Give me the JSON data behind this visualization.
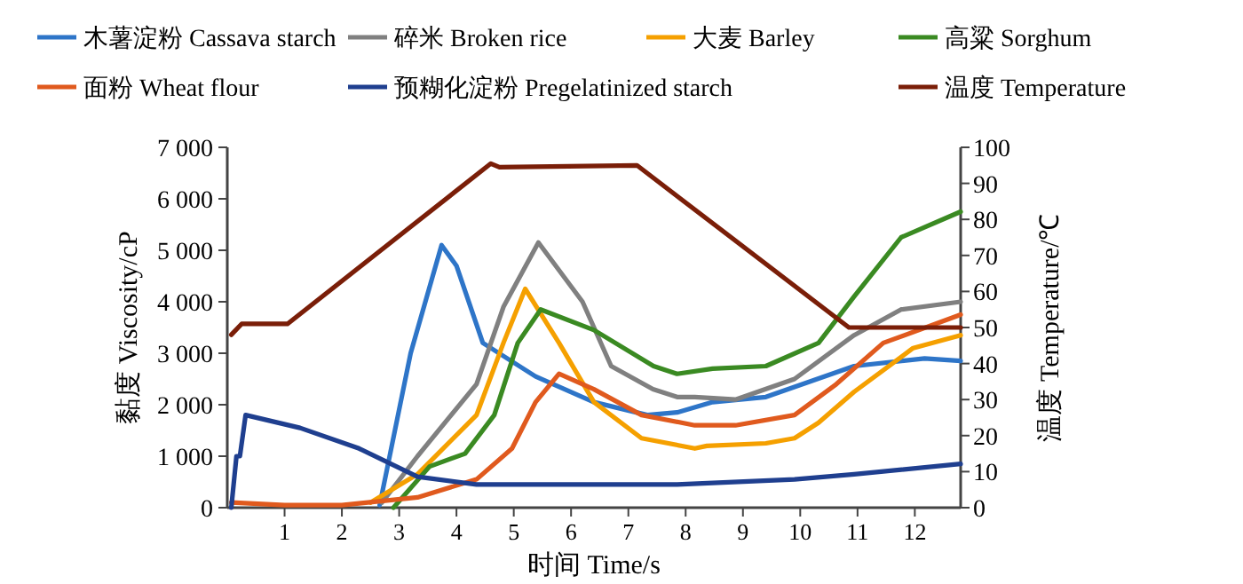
{
  "chart_data": {
    "type": "line",
    "xlabel": "时间  Time/s",
    "ylabel": "黏度  Viscosity/cP",
    "y2label": "温度 Temperature/℃",
    "xlim": [
      0,
      12.8
    ],
    "xticks": [
      1,
      2,
      3,
      4,
      5,
      6,
      7,
      8,
      9,
      10,
      11,
      12
    ],
    "ylim": [
      0,
      7000
    ],
    "yticks": [
      0,
      {
        "value": 1000,
        "label": "1 000"
      },
      {
        "value": 2000,
        "label": "2 000"
      },
      {
        "value": 3000,
        "label": "3 000"
      },
      {
        "value": 4000,
        "label": "4 000"
      },
      {
        "value": 5000,
        "label": "5 000"
      },
      {
        "value": 6000,
        "label": "6 000"
      },
      {
        "value": 7000,
        "label": "7 000"
      }
    ],
    "y2lim": [
      0,
      100
    ],
    "y2ticks": [
      0,
      10,
      20,
      30,
      40,
      50,
      60,
      70,
      80,
      90,
      100
    ],
    "legend": "top",
    "grid": false,
    "marker": "none",
    "series": [
      {
        "name": "木薯淀粉 Cassava starch",
        "color": "#2e75c8",
        "x": [
          2.66,
          3.2,
          3.74,
          4.0,
          4.46,
          5.38,
          6.4,
          7.33,
          7.85,
          8.47,
          9.4,
          10.94,
          12.17,
          12.8
        ],
        "values": [
          50,
          3000,
          5100,
          4700,
          3200,
          2550,
          2050,
          1800,
          1850,
          2050,
          2150,
          2750,
          2900,
          2850
        ]
      },
      {
        "name": "碎米 Broken rice",
        "color": "#808080",
        "x": [
          2.7,
          3.32,
          4.35,
          4.82,
          5.43,
          6.2,
          6.7,
          7.43,
          7.85,
          8.16,
          8.87,
          9.9,
          10.94,
          11.76,
          12.8
        ],
        "values": [
          100,
          1000,
          2400,
          3900,
          5150,
          4000,
          2750,
          2300,
          2150,
          2150,
          2100,
          2500,
          3350,
          3850,
          4000
        ]
      },
      {
        "name": "大麦 Barley",
        "color": "#f5a000",
        "x": [
          2.5,
          3.32,
          4.35,
          4.82,
          5.2,
          5.79,
          6.4,
          7.23,
          8.16,
          8.37,
          9.4,
          9.9,
          10.32,
          10.94,
          11.97,
          12.8
        ],
        "values": [
          100,
          650,
          1800,
          3200,
          4250,
          3200,
          2050,
          1350,
          1150,
          1200,
          1250,
          1350,
          1650,
          2250,
          3100,
          3350
        ]
      },
      {
        "name": "高粱  Sorghum",
        "color": "#3a8a22",
        "x": [
          2.9,
          3.53,
          4.15,
          4.66,
          5.07,
          5.47,
          6.4,
          7.44,
          7.85,
          8.47,
          9.4,
          10.32,
          10.94,
          11.76,
          12.8
        ],
        "values": [
          0,
          800,
          1050,
          1800,
          3200,
          3850,
          3450,
          2750,
          2600,
          2700,
          2750,
          3200,
          4100,
          5250,
          5750
        ]
      },
      {
        "name": "面粉 Wheat flour",
        "color": "#e05a1e",
        "x": [
          0.07,
          1,
          2,
          3.32,
          4.35,
          4.97,
          5.38,
          5.79,
          6.4,
          7.23,
          8.16,
          8.87,
          9.9,
          10.63,
          11.45,
          12.8
        ],
        "values": [
          100,
          50,
          50,
          200,
          550,
          1150,
          2050,
          2600,
          2300,
          1800,
          1600,
          1600,
          1800,
          2400,
          3200,
          3750
        ]
      },
      {
        "name": "预糊化淀粉 Pregelatinized starch",
        "color": "#1f3f8f",
        "x": [
          0.07,
          0.16,
          0.22,
          0.32,
          1.27,
          2.3,
          3.32,
          4.35,
          5.38,
          6.4,
          7.85,
          9.9,
          10.94,
          12.8
        ],
        "values": [
          0,
          1000,
          1000,
          1800,
          1550,
          1150,
          600,
          450,
          450,
          450,
          450,
          550,
          650,
          850
        ]
      },
      {
        "name": "温度  Temperature",
        "color": "#7a1e08",
        "axis": "y2",
        "x": [
          0.07,
          0.25,
          1.05,
          4.6,
          4.75,
          7.15,
          10.85,
          12.8
        ],
        "values": [
          48,
          51,
          51,
          95.5,
          94.5,
          95,
          50,
          50
        ]
      }
    ]
  }
}
